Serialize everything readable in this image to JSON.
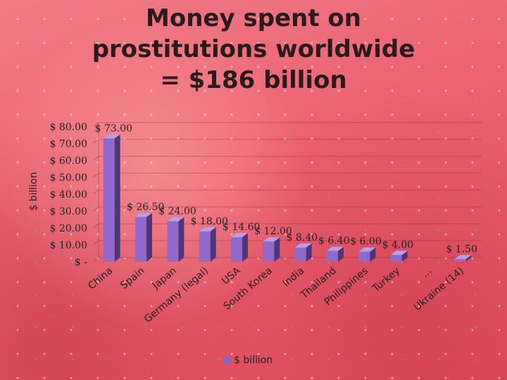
{
  "page_title": "Money spent on\nprostitutions worldwide\n= $186 billion",
  "colors": {
    "bar_front": "#8f69cc",
    "bar_side": "#4e3478",
    "bar_top": "#b9a0e6",
    "text": "#222222"
  },
  "chart_data": {
    "type": "bar",
    "title": "Money spent on prostitutions worldwide = $186 billion",
    "ylabel": "$ billion",
    "ylim": [
      0,
      80
    ],
    "ytick_values": [
      0,
      10,
      20,
      30,
      40,
      50,
      60,
      70,
      80
    ],
    "ytick_labels": [
      "$ -",
      "$ 10.00",
      "$ 20.00",
      "$ 30.00",
      "$ 40.00",
      "$ 50.00",
      "$ 60.00",
      "$ 70.00",
      "$ 80.00"
    ],
    "grid": true,
    "legend_position": "bottom",
    "categories": [
      "China",
      "Spain",
      "Japan",
      "Germany (legal)",
      "USA",
      "South Korea",
      "India",
      "Thailand",
      "Philippines",
      "Turkey",
      "...",
      "Ukraine (14)"
    ],
    "series": [
      {
        "name": "$ billion",
        "values": [
          73.0,
          26.5,
          24.0,
          18.0,
          14.6,
          12.0,
          8.4,
          6.4,
          6.0,
          4.0,
          null,
          1.5
        ],
        "data_labels": [
          "$ 73.00",
          "$ 26.50",
          "$ 24.00",
          "$ 18.00",
          "$ 14.60",
          "$ 12.00",
          "$ 8.40",
          "$ 6.40",
          "$ 6.00",
          "$ 4.00",
          "",
          "$ 1.50"
        ]
      }
    ]
  }
}
